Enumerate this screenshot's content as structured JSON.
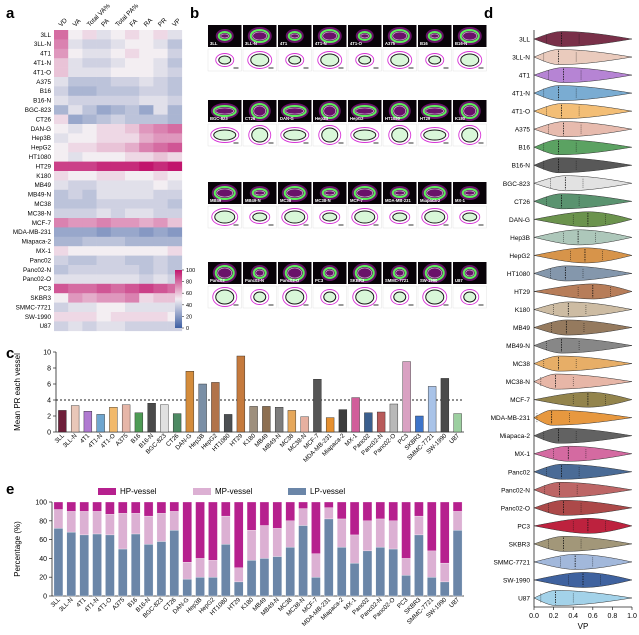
{
  "panel_labels": {
    "a": "a",
    "b": "b",
    "c": "c",
    "d": "d",
    "e": "e"
  },
  "colors": {
    "lp": "#6b86a8",
    "mp": "#dcb0d3",
    "hp": "#b6208e",
    "heat_low": "#3d5fa3",
    "heat_mid": "#f3eef2",
    "heat_high": "#c1156d"
  },
  "cell_lines": [
    "3LL",
    "3LL-N",
    "4T1",
    "4T1-N",
    "4T1-O",
    "A375",
    "B16",
    "B16-N",
    "BGC-823",
    "CT26",
    "DAN-G",
    "Hep3B",
    "HepG2",
    "HT1080",
    "HT29",
    "K180",
    "MB49",
    "MB49-N",
    "MC38",
    "MC38-N",
    "MCF-7",
    "MDA-MB-231",
    "Miapaca-2",
    "MX-1",
    "Panc02",
    "Panc02-N",
    "Panc02-O",
    "PC3",
    "SKBR3",
    "SMMC-7721",
    "SW-1990",
    "U87"
  ],
  "panel_b": {
    "rows": [
      [
        "3LL",
        "3LL-N",
        "4T1",
        "4T1-N",
        "4T1-O",
        "A375",
        "B16",
        "B16-N"
      ],
      [
        "BGC-823",
        "CT26",
        "DAN-G",
        "Hep3B",
        "HepG2",
        "HT1080",
        "HT29",
        "K180"
      ],
      [
        "MB49",
        "MB49-N",
        "MC38",
        "MC38-N",
        "MCF-7",
        "MDA-MB-231",
        "Miapaca-2",
        "MX-1"
      ],
      [
        "Panc02",
        "Panc02-N",
        "Panc02-O",
        "PC3",
        "SKBR3",
        "SMMC-7721",
        "SW-1990",
        "U87"
      ]
    ]
  },
  "chart_data": [
    {
      "id": "a",
      "type": "heatmap",
      "columns": [
        "VD",
        "VA",
        "Total VA%",
        "PA",
        "Total PA%",
        "FA",
        "RA",
        "PR",
        "VP"
      ],
      "rows": [
        "3LL",
        "3LL-N",
        "4T1",
        "4T1-N",
        "4T1-O",
        "A375",
        "B16",
        "B16-N",
        "BGC-823",
        "CT26",
        "DAN-G",
        "Hep3B",
        "HepG2",
        "HT1080",
        "HT29",
        "K180",
        "MB49",
        "MB49-N",
        "MC38",
        "MC38-N",
        "MCF-7",
        "MDA-MB-231",
        "Miapaca-2",
        "MX-1",
        "Panc02",
        "Panc02-N",
        "Panc02-O",
        "PC3",
        "SKBR3",
        "SMMC-7721",
        "SW-1990",
        "U87"
      ],
      "values": [
        [
          80,
          50,
          55,
          45,
          50,
          55,
          50,
          55,
          45
        ],
        [
          75,
          45,
          40,
          40,
          45,
          50,
          50,
          45,
          35
        ],
        [
          70,
          50,
          45,
          45,
          50,
          55,
          50,
          50,
          40
        ],
        [
          60,
          45,
          40,
          40,
          45,
          50,
          50,
          45,
          35
        ],
        [
          60,
          45,
          45,
          45,
          50,
          50,
          50,
          45,
          40
        ],
        [
          45,
          35,
          35,
          35,
          40,
          40,
          45,
          40,
          35
        ],
        [
          40,
          30,
          30,
          35,
          35,
          35,
          40,
          40,
          35
        ],
        [
          45,
          40,
          40,
          40,
          40,
          40,
          45,
          45,
          40
        ],
        [
          30,
          45,
          35,
          25,
          30,
          35,
          25,
          45,
          30
        ],
        [
          55,
          25,
          30,
          35,
          40,
          35,
          35,
          35,
          30
        ],
        [
          50,
          45,
          50,
          55,
          55,
          60,
          70,
          75,
          80
        ],
        [
          45,
          50,
          50,
          55,
          55,
          55,
          65,
          70,
          70
        ],
        [
          50,
          55,
          55,
          60,
          60,
          65,
          75,
          80,
          85
        ],
        [
          50,
          45,
          50,
          50,
          50,
          55,
          55,
          60,
          55
        ],
        [
          90,
          90,
          90,
          95,
          95,
          95,
          100,
          95,
          100
        ],
        [
          55,
          50,
          50,
          55,
          55,
          50,
          50,
          55,
          50
        ],
        [
          45,
          40,
          40,
          45,
          45,
          45,
          45,
          50,
          45
        ],
        [
          35,
          40,
          35,
          45,
          45,
          45,
          45,
          40,
          40
        ],
        [
          35,
          35,
          35,
          40,
          40,
          40,
          40,
          40,
          35
        ],
        [
          40,
          40,
          40,
          45,
          40,
          45,
          45,
          40,
          40
        ],
        [
          75,
          70,
          70,
          75,
          70,
          70,
          65,
          70,
          60
        ],
        [
          25,
          25,
          25,
          20,
          25,
          25,
          20,
          25,
          20
        ],
        [
          30,
          30,
          35,
          35,
          35,
          30,
          30,
          30,
          30
        ],
        [
          55,
          50,
          50,
          50,
          50,
          50,
          50,
          50,
          55
        ],
        [
          40,
          35,
          35,
          40,
          40,
          35,
          35,
          40,
          35
        ],
        [
          35,
          40,
          40,
          40,
          40,
          40,
          35,
          40,
          35
        ],
        [
          45,
          45,
          45,
          45,
          45,
          45,
          40,
          45,
          40
        ],
        [
          85,
          80,
          80,
          85,
          80,
          85,
          90,
          85,
          80
        ],
        [
          50,
          70,
          65,
          70,
          70,
          75,
          55,
          60,
          60
        ],
        [
          40,
          45,
          45,
          50,
          50,
          45,
          45,
          45,
          45
        ],
        [
          55,
          55,
          55,
          50,
          55,
          55,
          55,
          55,
          50
        ],
        [
          40,
          45,
          40,
          45,
          45,
          40,
          40,
          40,
          40
        ]
      ],
      "colorbar": {
        "ticks": [
          0,
          20,
          40,
          60,
          80,
          100
        ],
        "range": [
          0,
          100
        ]
      }
    },
    {
      "id": "c",
      "type": "bar",
      "ylabel": "Mean PR each vessel",
      "ylim": [
        0,
        10
      ],
      "yticks": [
        0,
        2,
        4,
        6,
        8,
        10
      ],
      "reference_line": 4,
      "categories": [
        "3LL",
        "3LL-N",
        "4T1",
        "4T1-N",
        "4T1-O",
        "A375",
        "B16",
        "B16-N",
        "BGC-823",
        "CT26",
        "DAN-G",
        "Hep3B",
        "HepG2",
        "HT1080",
        "HT29",
        "K180",
        "MB49",
        "MB49-N",
        "MC38",
        "MC38-N",
        "MCF-7",
        "MDA-MB-231",
        "Miapaca-2",
        "MX-1",
        "Panc02",
        "Panc02-N",
        "Panc02-O",
        "PC3",
        "SKBR3",
        "SMMC-7721",
        "SW-1990",
        "U87"
      ],
      "values": [
        2.7,
        3.3,
        2.6,
        2.2,
        3.1,
        3.4,
        2.4,
        3.6,
        3.4,
        2.3,
        7.6,
        6.0,
        6.2,
        2.2,
        9.5,
        3.2,
        3.2,
        3.1,
        2.7,
        1.9,
        6.6,
        1.8,
        2.8,
        4.3,
        2.4,
        2.5,
        3.5,
        8.8,
        2.0,
        5.7,
        6.7,
        2.3
      ],
      "bar_colors": [
        "#6e1f3a",
        "#e9c7b8",
        "#b07ad1",
        "#6fa6cf",
        "#f2b96b",
        "#e6b6a8",
        "#4e9b55",
        "#4a4a4a",
        "#e0e0e0",
        "#4d8a63",
        "#d48c3b",
        "#7a8fa6",
        "#b1734b",
        "#4c4f52",
        "#c57a3d",
        "#9e8f7c",
        "#8d6f51",
        "#7d7d7d",
        "#e6a85b",
        "#e6b0a0",
        "#555555",
        "#e6902f",
        "#3d3d3d",
        "#d15e9a",
        "#3b5f8e",
        "#b85a5a",
        "#b8b8b8",
        "#d9a1c2",
        "#3d74c9",
        "#a9c3e8",
        "#4a4a4a",
        "#9ccfa0"
      ]
    },
    {
      "id": "d",
      "type": "violin",
      "xlabel": "VP",
      "xlim": [
        0,
        1
      ],
      "xticks": [
        0.0,
        0.2,
        0.4,
        0.6,
        0.8,
        1.0
      ],
      "categories": [
        "3LL",
        "3LL-N",
        "4T1",
        "4T1-N",
        "4T1-O",
        "A375",
        "B16",
        "B16-N",
        "BGC-823",
        "CT26",
        "DAN-G",
        "Hep3B",
        "HepG2",
        "HT1080",
        "HT29",
        "K180",
        "MB49",
        "MB49-N",
        "MC38",
        "MC38-N",
        "MCF-7",
        "MDA-MB-231",
        "Miapaca-2",
        "MX-1",
        "Panc02",
        "Panc02-N",
        "Panc02-O",
        "PC3",
        "SKBR3",
        "SMMC-7721",
        "SW-1990",
        "U87"
      ],
      "medians": [
        0.28,
        0.25,
        0.3,
        0.25,
        0.28,
        0.3,
        0.25,
        0.25,
        0.32,
        0.28,
        0.55,
        0.45,
        0.52,
        0.32,
        0.6,
        0.35,
        0.33,
        0.28,
        0.25,
        0.22,
        0.55,
        0.18,
        0.25,
        0.35,
        0.28,
        0.26,
        0.3,
        0.55,
        0.3,
        0.42,
        0.5,
        0.22
      ],
      "colors": [
        "#6e1f3a",
        "#e9c7b8",
        "#b07ad1",
        "#6fa6cf",
        "#f2b96b",
        "#e6b6a8",
        "#4e9b55",
        "#4a4a4a",
        "#e0e0e0",
        "#4d8a63",
        "#5f8a3e",
        "#a7c3b5",
        "#d48c3b",
        "#7a8fa6",
        "#b1734b",
        "#c9b79c",
        "#8d6f51",
        "#7d7d7d",
        "#e6a85b",
        "#e6b0a0",
        "#8a7a3d",
        "#e6902f",
        "#555555",
        "#d15e9a",
        "#3b5f8e",
        "#b85a5a",
        "#a63a3a",
        "#b8102e",
        "#9b8f6e",
        "#9bb3d9",
        "#2f5597",
        "#9ccfe8"
      ]
    },
    {
      "id": "e",
      "type": "stacked_bar",
      "ylabel": "Percentage (%)",
      "ylim": [
        0,
        100
      ],
      "yticks": [
        0,
        20,
        40,
        60,
        80,
        100
      ],
      "legend": [
        "HP-vessel",
        "MP-vessel",
        "LP-vessel"
      ],
      "categories": [
        "3LL",
        "3LL-N",
        "4T1",
        "4T1-N",
        "4T1-O",
        "A375",
        "B16",
        "B16-N",
        "BGC-823",
        "CT26",
        "DAN-G",
        "Hep3B",
        "HepG2",
        "HT1080",
        "HT29",
        "K180",
        "MB49",
        "MB49-N",
        "MC38",
        "MC38-N",
        "MCF-7",
        "MDA-MB-231",
        "Miapaca-2",
        "MX-1",
        "Panc02",
        "Panc02-N",
        "Panc02-O",
        "PC3",
        "SKBR3",
        "SMMC-7721",
        "SW-1990",
        "U87"
      ],
      "series": [
        {
          "name": "LP-vessel",
          "values": [
            72,
            68,
            65,
            66,
            65,
            50,
            66,
            55,
            58,
            70,
            18,
            20,
            20,
            55,
            15,
            38,
            40,
            42,
            52,
            75,
            20,
            82,
            52,
            35,
            48,
            52,
            50,
            22,
            65,
            20,
            15,
            70
          ]
        },
        {
          "name": "MP-vessel",
          "values": [
            20,
            22,
            25,
            24,
            22,
            38,
            22,
            30,
            30,
            20,
            18,
            20,
            18,
            30,
            15,
            32,
            35,
            30,
            28,
            18,
            25,
            12,
            30,
            30,
            32,
            30,
            30,
            18,
            20,
            28,
            20,
            20
          ]
        },
        {
          "name": "HP-vessel",
          "values": [
            8,
            10,
            10,
            10,
            13,
            12,
            12,
            15,
            12,
            10,
            64,
            60,
            62,
            15,
            70,
            30,
            25,
            28,
            20,
            7,
            55,
            6,
            18,
            35,
            20,
            18,
            20,
            60,
            15,
            52,
            65,
            10
          ]
        }
      ]
    }
  ]
}
